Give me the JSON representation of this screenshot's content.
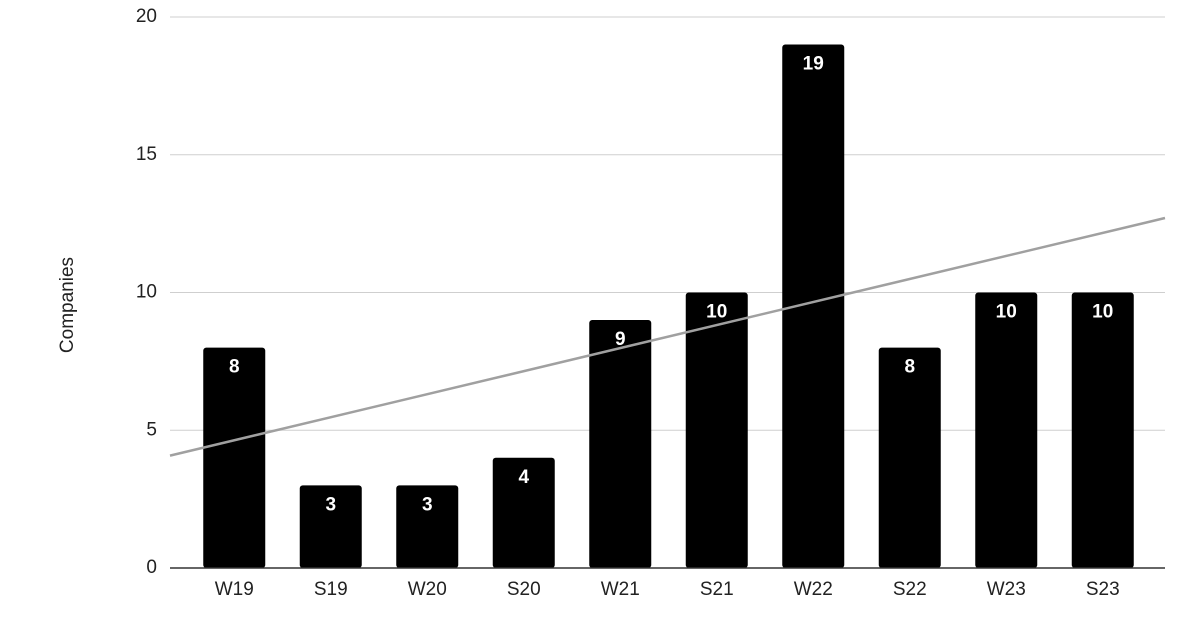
{
  "chart_data": {
    "type": "bar",
    "y_label": "Companies",
    "categories": [
      "W19",
      "S19",
      "W20",
      "S20",
      "W21",
      "S21",
      "W22",
      "S22",
      "W23",
      "S23"
    ],
    "values": [
      8,
      3,
      3,
      4,
      9,
      10,
      19,
      8,
      10,
      10
    ],
    "color": "#000000",
    "trendline": true,
    "trendline_color": "#a0a0a0",
    "ylim": [
      0,
      20
    ],
    "yticks": [
      0,
      5,
      10,
      15,
      20
    ],
    "grid": true
  }
}
